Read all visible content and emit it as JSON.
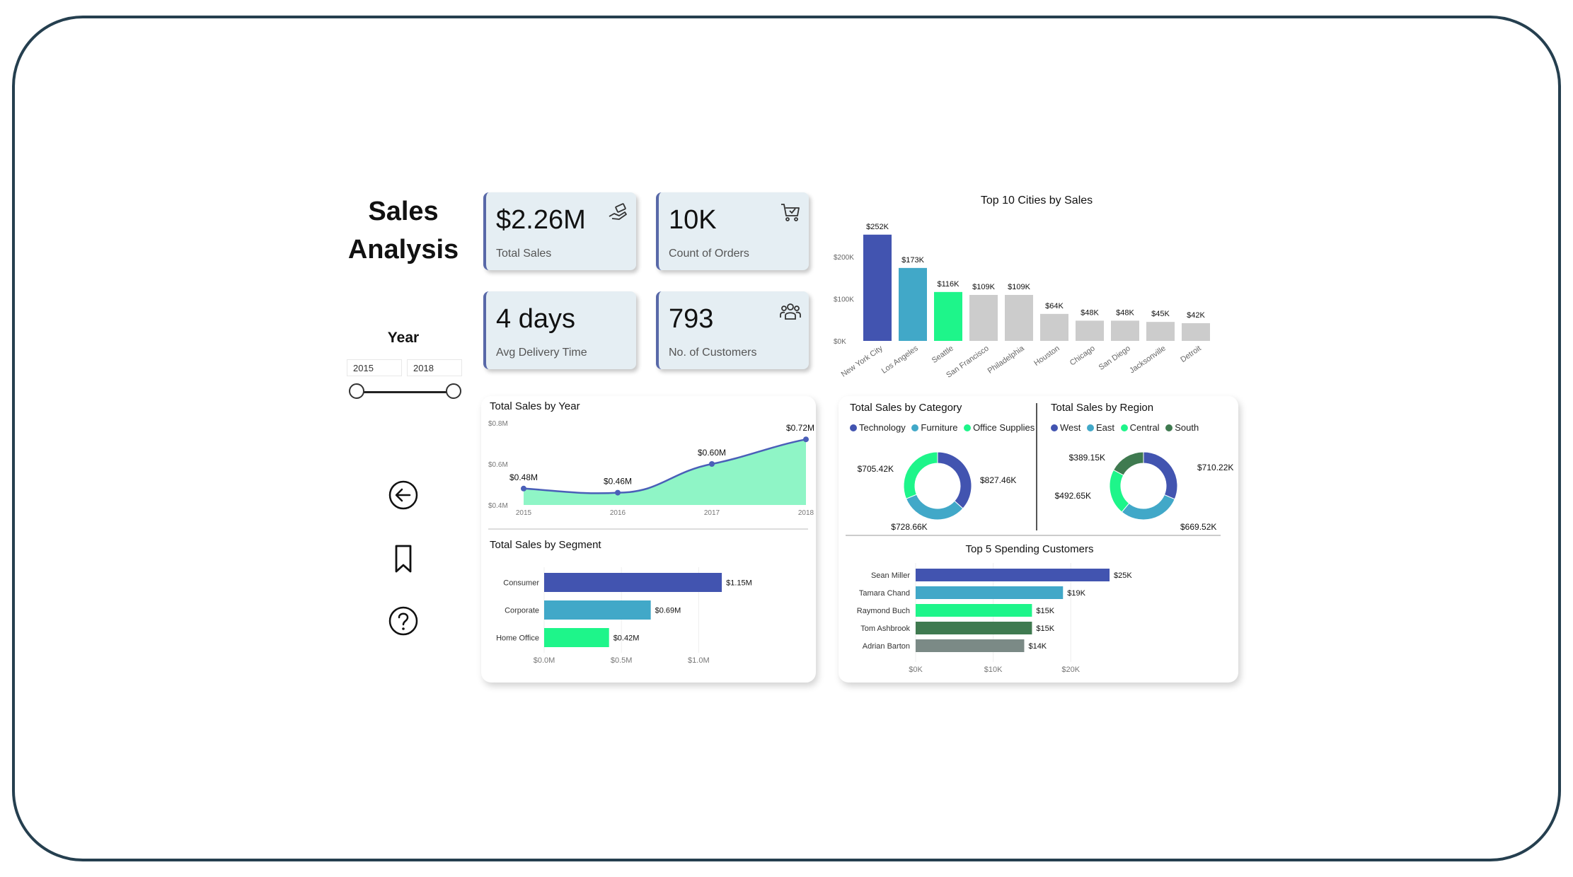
{
  "title_line1": "Sales",
  "title_line2": "Analysis",
  "year_filter": {
    "label": "Year",
    "from": "2015",
    "to": "2018",
    "range_fraction": [
      0,
      1
    ]
  },
  "nav": {
    "back_icon": "arrow-left-circle-icon",
    "bookmark_icon": "bookmark-icon",
    "help_icon": "question-circle-icon"
  },
  "kpis": [
    {
      "value": "$2.26M",
      "label": "Total Sales",
      "icon": "money-hand-icon"
    },
    {
      "value": "10K",
      "label": "Count of Orders",
      "icon": "shopping-cart-icon"
    },
    {
      "value": "4 days",
      "label": "Avg Delivery Time",
      "icon": "delivery-icon"
    },
    {
      "value": "793",
      "label": "No. of Customers",
      "icon": "people-icon"
    }
  ],
  "colors": {
    "dark_blue": "#4254b0",
    "teal": "#41a8c8",
    "green": "#1ef58a",
    "gray": "#cccccc",
    "dark_green": "#3f7a50",
    "slate": "#7b8a86",
    "frame": "#253f4f"
  },
  "chart_data": [
    {
      "id": "cities",
      "type": "bar",
      "title": "Top 10 Cities by Sales",
      "categories": [
        "New York City",
        "Los Angeles",
        "Seattle",
        "San Francisco",
        "Philadelphia",
        "Houston",
        "Chicago",
        "San Diego",
        "Jacksonville",
        "Detroit"
      ],
      "values": [
        252,
        173,
        116,
        109,
        109,
        64,
        48,
        48,
        45,
        42
      ],
      "value_labels": [
        "$252K",
        "$173K",
        "$116K",
        "$109K",
        "$109K",
        "$64K",
        "$48K",
        "$48K",
        "$45K",
        "$42K"
      ],
      "bar_colors": [
        "#4254b0",
        "#41a8c8",
        "#1ef58a",
        "#cccccc",
        "#cccccc",
        "#cccccc",
        "#cccccc",
        "#cccccc",
        "#cccccc",
        "#cccccc"
      ],
      "yticks": [
        "$0K",
        "$100K",
        "$200K"
      ],
      "ytick_values": [
        0,
        100,
        200
      ],
      "ylim": [
        0,
        260
      ]
    },
    {
      "id": "year",
      "type": "area",
      "title": "Total Sales by Year",
      "x": [
        "2015",
        "2016",
        "2017",
        "2018"
      ],
      "values": [
        0.48,
        0.46,
        0.6,
        0.72
      ],
      "value_labels": [
        "$0.48M",
        "$0.46M",
        "$0.60M",
        "$0.72M"
      ],
      "yticks": [
        "$0.4M",
        "$0.6M",
        "$0.8M"
      ],
      "ytick_values": [
        0.4,
        0.6,
        0.8
      ],
      "ylim": [
        0.4,
        0.8
      ]
    },
    {
      "id": "segment",
      "type": "bar",
      "orientation": "horizontal",
      "title": "Total Sales by Segment",
      "categories": [
        "Consumer",
        "Corporate",
        "Home Office"
      ],
      "values": [
        1.15,
        0.69,
        0.42
      ],
      "value_labels": [
        "$1.15M",
        "$0.69M",
        "$0.42M"
      ],
      "bar_colors": [
        "#4254b0",
        "#41a8c8",
        "#1ef58a"
      ],
      "xticks": [
        "$0.0M",
        "$0.5M",
        "$1.0M"
      ],
      "xtick_values": [
        0,
        0.5,
        1.0
      ],
      "xlim": [
        0,
        1.2
      ]
    },
    {
      "id": "category",
      "type": "pie",
      "donut": true,
      "title": "Total Sales by Category",
      "series": [
        {
          "name": "Technology",
          "value": 827.46,
          "label": "$827.46K",
          "color": "#4254b0"
        },
        {
          "name": "Furniture",
          "value": 728.66,
          "label": "$728.66K",
          "color": "#41a8c8"
        },
        {
          "name": "Office Supplies",
          "value": 705.42,
          "label": "$705.42K",
          "color": "#1ef58a"
        }
      ]
    },
    {
      "id": "region",
      "type": "pie",
      "donut": true,
      "title": "Total Sales by Region",
      "series": [
        {
          "name": "West",
          "value": 710.22,
          "label": "$710.22K",
          "color": "#4254b0"
        },
        {
          "name": "East",
          "value": 669.52,
          "label": "$669.52K",
          "color": "#41a8c8"
        },
        {
          "name": "Central",
          "value": 492.65,
          "label": "$492.65K",
          "color": "#1ef58a"
        },
        {
          "name": "South",
          "value": 389.15,
          "label": "$389.15K",
          "color": "#3f7a50"
        }
      ]
    },
    {
      "id": "customers",
      "type": "bar",
      "orientation": "horizontal",
      "title": "Top 5 Spending Customers",
      "categories": [
        "Sean Miller",
        "Tamara Chand",
        "Raymond Buch",
        "Tom Ashbrook",
        "Adrian Barton"
      ],
      "values": [
        25,
        19,
        15,
        15,
        14
      ],
      "value_labels": [
        "$25K",
        "$19K",
        "$15K",
        "$15K",
        "$14K"
      ],
      "bar_colors": [
        "#4254b0",
        "#41a8c8",
        "#1ef58a",
        "#3f7a50",
        "#7b8a86"
      ],
      "xticks": [
        "$0K",
        "$10K",
        "$20K"
      ],
      "xtick_values": [
        0,
        10,
        20
      ],
      "xlim": [
        0,
        26
      ]
    }
  ]
}
